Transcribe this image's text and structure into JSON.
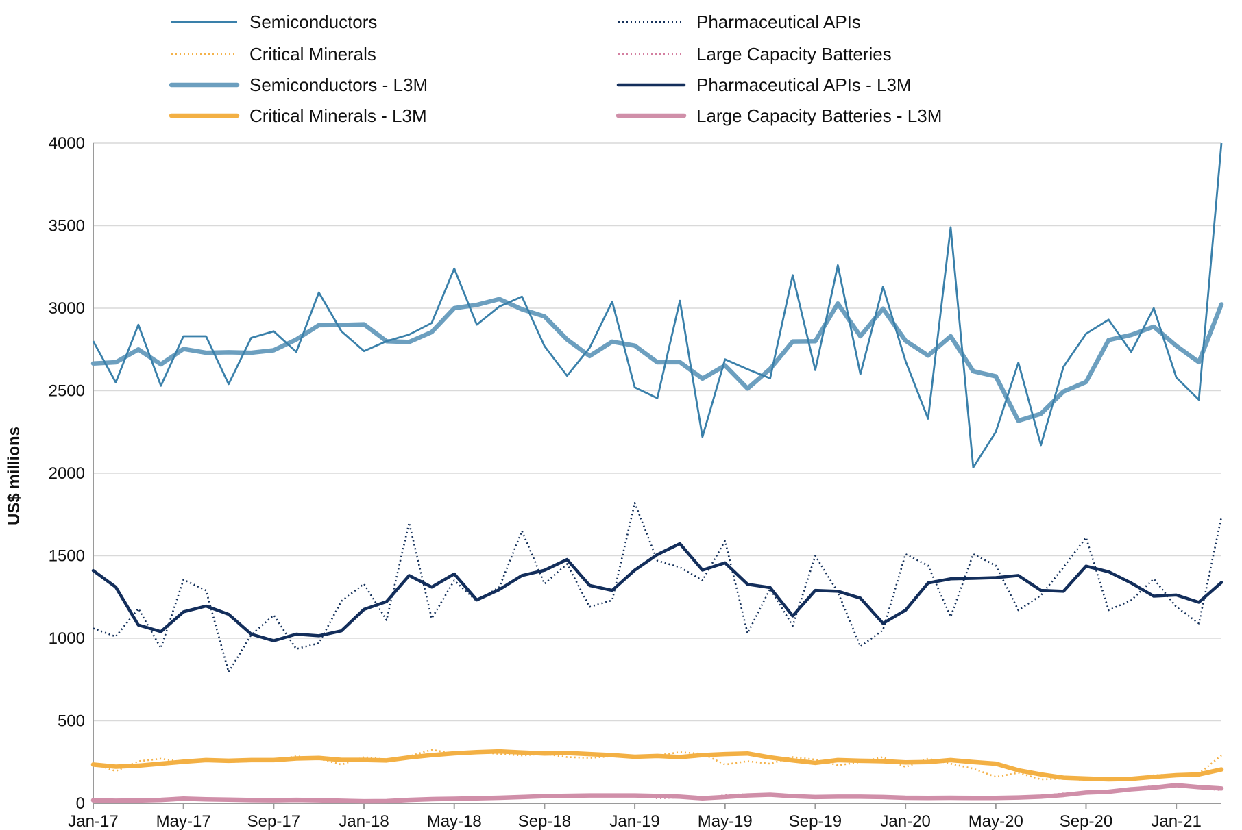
{
  "chart_data": {
    "type": "line",
    "title": "",
    "xlabel": "",
    "ylabel": "US$ millions",
    "ylim": [
      0,
      4000
    ],
    "yticks": [
      0,
      500,
      1000,
      1500,
      2000,
      2500,
      3000,
      3500,
      4000
    ],
    "grid": "horizontal",
    "legend_position": "top",
    "x_tick_labels": [
      "Jan-17",
      "May-17",
      "Sep-17",
      "Jan-18",
      "May-18",
      "Sep-18",
      "Jan-19",
      "May-19",
      "Sep-19",
      "Jan-20",
      "May-20",
      "Sep-20",
      "Jan-21"
    ],
    "x_tick_indices": [
      0,
      4,
      8,
      12,
      16,
      20,
      24,
      28,
      32,
      36,
      40,
      44,
      48
    ],
    "categories": [
      "Jan-17",
      "Feb-17",
      "Mar-17",
      "Apr-17",
      "May-17",
      "Jun-17",
      "Jul-17",
      "Aug-17",
      "Sep-17",
      "Oct-17",
      "Nov-17",
      "Dec-17",
      "Jan-18",
      "Feb-18",
      "Mar-18",
      "Apr-18",
      "May-18",
      "Jun-18",
      "Jul-18",
      "Aug-18",
      "Sep-18",
      "Oct-18",
      "Nov-18",
      "Dec-18",
      "Jan-19",
      "Feb-19",
      "Mar-19",
      "Apr-19",
      "May-19",
      "Jun-19",
      "Jul-19",
      "Aug-19",
      "Sep-19",
      "Oct-19",
      "Nov-19",
      "Dec-19",
      "Jan-20",
      "Feb-20",
      "Mar-20",
      "Apr-20",
      "May-20",
      "Jun-20",
      "Jul-20",
      "Aug-20",
      "Sep-20",
      "Oct-20",
      "Nov-20",
      "Dec-20",
      "Jan-21",
      "Feb-21",
      "Mar-21"
    ],
    "series": [
      {
        "name": "Semiconductors",
        "color": "#3a80aa",
        "style": "solid-thin",
        "values": [
          2800,
          2550,
          2900,
          2530,
          2830,
          2830,
          2540,
          2820,
          2860,
          2735,
          3095,
          2860,
          2740,
          2800,
          2840,
          2910,
          3240,
          2900,
          3010,
          3070,
          2770,
          2590,
          2760,
          3040,
          2520,
          2455,
          3045,
          2220,
          2690,
          2630,
          2575,
          3200,
          2625,
          3260,
          2600,
          3130,
          2680,
          2330,
          3490,
          2035,
          2250,
          2670,
          2170,
          2645,
          2845,
          2930,
          2735,
          3000,
          2580,
          2445,
          4000
        ]
      },
      {
        "name": "Pharmaceutical APIs",
        "color": "#14305a",
        "style": "dotted",
        "values": [
          1060,
          1010,
          1180,
          940,
          1355,
          1290,
          795,
          1020,
          1140,
          935,
          970,
          1225,
          1330,
          1110,
          1700,
          1120,
          1350,
          1225,
          1310,
          1650,
          1330,
          1450,
          1190,
          1230,
          1820,
          1470,
          1430,
          1350,
          1590,
          1030,
          1300,
          1075,
          1500,
          1280,
          950,
          1050,
          1510,
          1440,
          1130,
          1510,
          1440,
          1170,
          1260,
          1430,
          1610,
          1170,
          1230,
          1360,
          1190,
          1090,
          1735
        ]
      },
      {
        "name": "Critical Minerals",
        "color": "#f4b24a",
        "style": "dotted",
        "values": [
          240,
          195,
          255,
          270,
          250,
          260,
          250,
          255,
          260,
          285,
          270,
          235,
          280,
          265,
          285,
          325,
          300,
          310,
          300,
          290,
          300,
          280,
          275,
          285,
          275,
          290,
          310,
          300,
          235,
          255,
          240,
          280,
          265,
          230,
          250,
          280,
          220,
          270,
          240,
          210,
          160,
          185,
          145,
          150,
          140,
          145,
          150,
          170,
          175,
          180,
          290
        ]
      },
      {
        "name": "Large Capacity Batteries",
        "color": "#d47fa0",
        "style": "dotted",
        "values": [
          20,
          15,
          20,
          25,
          30,
          20,
          25,
          20,
          15,
          25,
          20,
          15,
          10,
          15,
          25,
          30,
          30,
          30,
          35,
          40,
          45,
          50,
          45,
          45,
          50,
          30,
          35,
          25,
          50,
          55,
          50,
          45,
          40,
          35,
          45,
          40,
          30,
          35,
          35,
          30,
          35,
          40,
          45,
          60,
          70,
          75,
          90,
          105,
          110,
          90,
          80
        ]
      },
      {
        "name": "Semiconductors - L3M",
        "color": "#6c9fbf",
        "style": "solid-thick",
        "values": [
          2665,
          2672,
          2750,
          2660,
          2753,
          2730,
          2733,
          2730,
          2745,
          2810,
          2897,
          2898,
          2902,
          2800,
          2795,
          2855,
          3000,
          3020,
          3055,
          2993,
          2950,
          2810,
          2710,
          2797,
          2773,
          2672,
          2673,
          2573,
          2653,
          2513,
          2632,
          2798,
          2800,
          3028,
          2830,
          2997,
          2803,
          2713,
          2830,
          2618,
          2587,
          2318,
          2360,
          2495,
          2553,
          2807,
          2838,
          2888,
          2772,
          2673,
          3023
        ]
      },
      {
        "name": "Pharmaceutical APIs - L3M",
        "color": "#132e5b",
        "style": "solid-medium",
        "values": [
          1410,
          1310,
          1080,
          1040,
          1160,
          1195,
          1145,
          1025,
          985,
          1025,
          1015,
          1045,
          1175,
          1222,
          1380,
          1310,
          1390,
          1232,
          1295,
          1380,
          1412,
          1477,
          1320,
          1290,
          1413,
          1507,
          1573,
          1413,
          1457,
          1327,
          1307,
          1135,
          1290,
          1285,
          1243,
          1090,
          1170,
          1335,
          1360,
          1363,
          1367,
          1380,
          1290,
          1285,
          1437,
          1403,
          1335,
          1255,
          1262,
          1218,
          1338
        ]
      },
      {
        "name": "Critical Minerals - L3M",
        "color": "#f3b044",
        "style": "solid-thick",
        "values": [
          235,
          222,
          228,
          240,
          252,
          262,
          258,
          262,
          262,
          272,
          275,
          263,
          263,
          260,
          278,
          292,
          303,
          310,
          315,
          308,
          302,
          305,
          298,
          292,
          282,
          287,
          280,
          292,
          298,
          302,
          278,
          260,
          245,
          262,
          258,
          255,
          248,
          250,
          262,
          250,
          240,
          200,
          175,
          155,
          150,
          145,
          148,
          160,
          170,
          175,
          205
        ]
      },
      {
        "name": "Large Capacity Batteries - L3M",
        "color": "#d08fa9",
        "style": "solid-thick",
        "values": [
          18,
          15,
          17,
          20,
          28,
          24,
          22,
          19,
          18,
          20,
          18,
          15,
          12,
          13,
          20,
          25,
          27,
          30,
          33,
          38,
          43,
          45,
          47,
          47,
          47,
          44,
          40,
          30,
          38,
          47,
          52,
          43,
          38,
          40,
          40,
          38,
          33,
          32,
          33,
          32,
          32,
          35,
          40,
          50,
          65,
          70,
          85,
          95,
          110,
          98,
          90
        ]
      }
    ],
    "legend": [
      {
        "key": "Semiconductors",
        "label": "Semiconductors",
        "column": 0,
        "row": 0
      },
      {
        "key": "Pharmaceutical APIs",
        "label": "Pharmaceutical APIs",
        "column": 1,
        "row": 0
      },
      {
        "key": "Critical Minerals",
        "label": "Critical Minerals",
        "column": 0,
        "row": 1
      },
      {
        "key": "Large Capacity Batteries",
        "label": "Large Capacity Batteries",
        "column": 1,
        "row": 1
      },
      {
        "key": "Semiconductors - L3M",
        "label": "Semiconductors - L3M",
        "column": 0,
        "row": 2
      },
      {
        "key": "Pharmaceutical APIs - L3M",
        "label": "Pharmaceutical APIs - L3M",
        "column": 1,
        "row": 2
      },
      {
        "key": "Critical Minerals - L3M",
        "label": "Critical Minerals - L3M",
        "column": 0,
        "row": 3
      },
      {
        "key": "Large Capacity Batteries - L3M",
        "label": "Large Capacity Batteries - L3M",
        "column": 1,
        "row": 3
      }
    ]
  }
}
